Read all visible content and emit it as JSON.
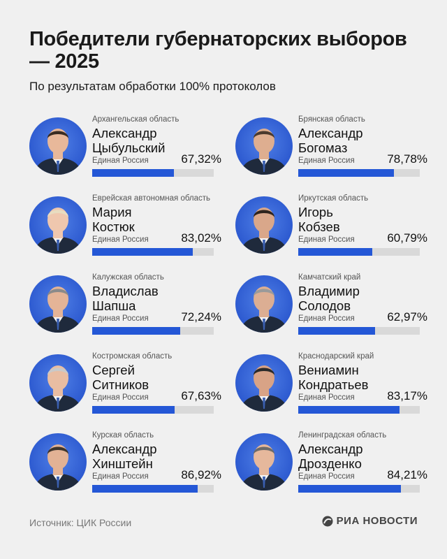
{
  "header": {
    "title": "Победители губернаторских выборов — 2025",
    "subtitle": "По результатам обработки 100% протоколов"
  },
  "chart_data": {
    "type": "bar",
    "title": "Победители губернаторских выборов — 2025",
    "subtitle": "По результатам обработки 100% протоколов",
    "xlim": [
      0,
      100
    ],
    "unit": "%",
    "colors": {
      "bar": "#2457d6",
      "track": "#d9d9d9",
      "avatar": "#2d5ad0"
    },
    "entries": [
      {
        "region": "Архангельская область",
        "name_line1": "Александр",
        "name_line2": "Цыбульский",
        "party": "Единая Россия",
        "value": 67.32,
        "label": "67,32%"
      },
      {
        "region": "Брянская область",
        "name_line1": "Александр",
        "name_line2": "Богомаз",
        "party": "Единая Россия",
        "value": 78.78,
        "label": "78,78%"
      },
      {
        "region": "Еврейская автономная область",
        "name_line1": "Мария",
        "name_line2": "Костюк",
        "party": "Единая Россия",
        "value": 83.02,
        "label": "83,02%"
      },
      {
        "region": "Иркутская область",
        "name_line1": "Игорь",
        "name_line2": "Кобзев",
        "party": "Единая Россия",
        "value": 60.79,
        "label": "60,79%"
      },
      {
        "region": "Калужская область",
        "name_line1": "Владислав",
        "name_line2": "Шапша",
        "party": "Единая Россия",
        "value": 72.24,
        "label": "72,24%"
      },
      {
        "region": "Камчатский край",
        "name_line1": "Владимир",
        "name_line2": "Солодов",
        "party": "Единая Россия",
        "value": 62.97,
        "label": "62,97%"
      },
      {
        "region": "Костромская область",
        "name_line1": "Сергей",
        "name_line2": "Ситников",
        "party": "Единая Россия",
        "value": 67.63,
        "label": "67,63%"
      },
      {
        "region": "Краснодарский край",
        "name_line1": "Вениамин",
        "name_line2": "Кондратьев",
        "party": "Единая Россия",
        "value": 83.17,
        "label": "83,17%"
      },
      {
        "region": "Курская область",
        "name_line1": "Александр",
        "name_line2": "Хинштейн",
        "party": "Единая Россия",
        "value": 86.92,
        "label": "86,92%"
      },
      {
        "region": "Ленинградская область",
        "name_line1": "Александр",
        "name_line2": "Дрозденко",
        "party": "Единая Россия",
        "value": 84.21,
        "label": "84,21%"
      }
    ]
  },
  "footer": {
    "source": "Источник: ЦИК России",
    "brand": "РИА НОВОСТИ",
    "brand_icon": "ria-logo-icon"
  }
}
